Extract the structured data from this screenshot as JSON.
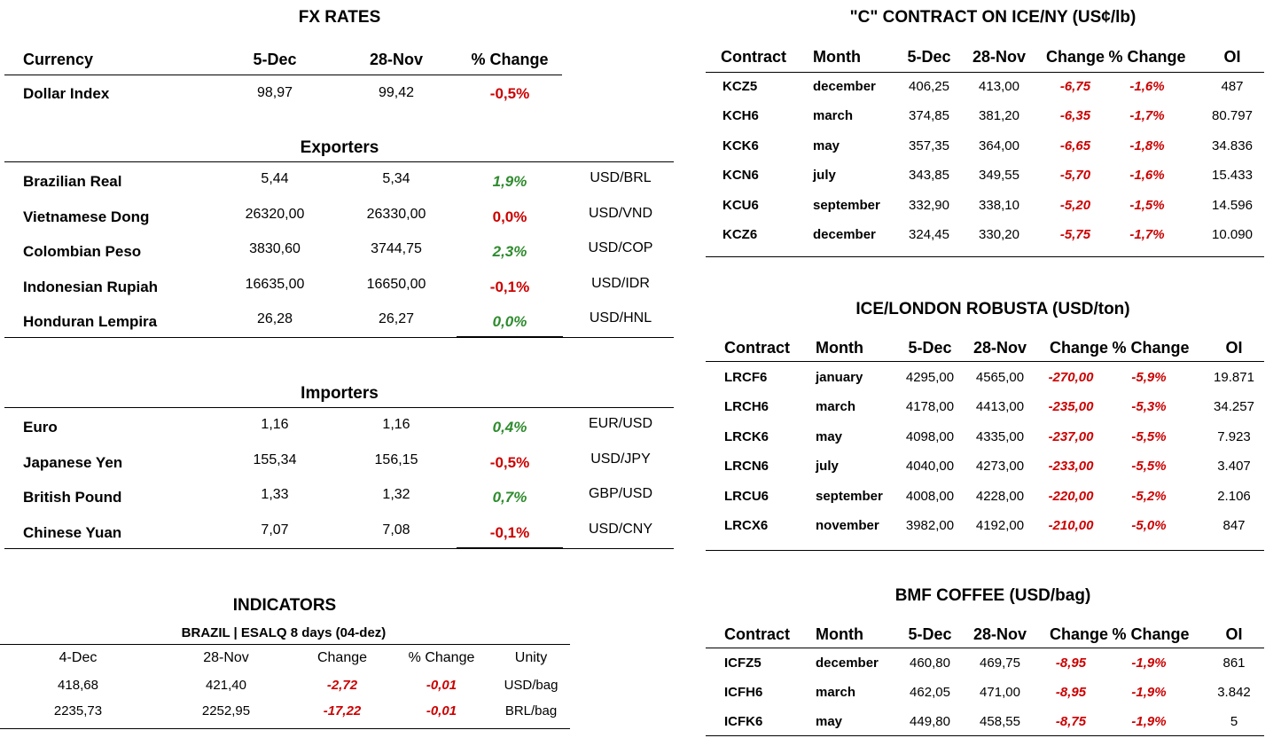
{
  "fx": {
    "title": "FX RATES",
    "headers": [
      "Currency",
      "5-Dec",
      "28-Nov",
      "% Change"
    ],
    "dollar_index": {
      "name": "Dollar Index",
      "d1": "98,97",
      "d2": "99,42",
      "chg": "-0,5%",
      "color": "red"
    },
    "exporters_title": "Exporters",
    "exporters": [
      {
        "name": "Brazilian Real",
        "d1": "5,44",
        "d2": "5,34",
        "chg": "1,9%",
        "color": "green",
        "pair": "USD/BRL"
      },
      {
        "name": "Vietnamese Dong",
        "d1": "26320,00",
        "d2": "26330,00",
        "chg": "0,0%",
        "color": "red",
        "pair": "USD/VND"
      },
      {
        "name": "Colombian Peso",
        "d1": "3830,60",
        "d2": "3744,75",
        "chg": "2,3%",
        "color": "green",
        "pair": "USD/COP"
      },
      {
        "name": "Indonesian Rupiah",
        "d1": "16635,00",
        "d2": "16650,00",
        "chg": "-0,1%",
        "color": "red",
        "pair": "USD/IDR"
      },
      {
        "name": "Honduran Lempira",
        "d1": "26,28",
        "d2": "26,27",
        "chg": "0,0%",
        "color": "green",
        "pair": "USD/HNL"
      }
    ],
    "importers_title": "Importers",
    "importers": [
      {
        "name": "Euro",
        "d1": "1,16",
        "d2": "1,16",
        "chg": "0,4%",
        "color": "green",
        "pair": "EUR/USD"
      },
      {
        "name": "Japanese Yen",
        "d1": "155,34",
        "d2": "156,15",
        "chg": "-0,5%",
        "color": "red",
        "pair": "USD/JPY"
      },
      {
        "name": "British Pound",
        "d1": "1,33",
        "d2": "1,32",
        "chg": "0,7%",
        "color": "green",
        "pair": "GBP/USD"
      },
      {
        "name": "Chinese Yuan",
        "d1": "7,07",
        "d2": "7,08",
        "chg": "-0,1%",
        "color": "red",
        "pair": "USD/CNY"
      }
    ]
  },
  "indicators": {
    "title": "INDICATORS",
    "subtitle": "BRAZIL | ESALQ 8 days (04-dez)",
    "headers": [
      "4-Dec",
      "28-Nov",
      "Change",
      "% Change",
      "Unity"
    ],
    "rows": [
      {
        "d1": "418,68",
        "d2": "421,40",
        "chg": "-2,72",
        "pct": "-0,01",
        "unit": "USD/bag"
      },
      {
        "d1": "2235,73",
        "d2": "2252,95",
        "chg": "-17,22",
        "pct": "-0,01",
        "unit": "BRL/bag"
      }
    ]
  },
  "futures_headers": [
    "Contract",
    "Month",
    "5-Dec",
    "28-Nov",
    "Change",
    "% Change",
    "OI"
  ],
  "ice_ny": {
    "title": "\"C\" CONTRACT ON ICE/NY (US¢/lb)",
    "rows": [
      {
        "c": "KCZ5",
        "m": "december",
        "d1": "406,25",
        "d2": "413,00",
        "chg": "-6,75",
        "pct": "-1,6%",
        "oi": "487"
      },
      {
        "c": "KCH6",
        "m": "march",
        "d1": "374,85",
        "d2": "381,20",
        "chg": "-6,35",
        "pct": "-1,7%",
        "oi": "80.797"
      },
      {
        "c": "KCK6",
        "m": "may",
        "d1": "357,35",
        "d2": "364,00",
        "chg": "-6,65",
        "pct": "-1,8%",
        "oi": "34.836"
      },
      {
        "c": "KCN6",
        "m": "july",
        "d1": "343,85",
        "d2": "349,55",
        "chg": "-5,70",
        "pct": "-1,6%",
        "oi": "15.433"
      },
      {
        "c": "KCU6",
        "m": "september",
        "d1": "332,90",
        "d2": "338,10",
        "chg": "-5,20",
        "pct": "-1,5%",
        "oi": "14.596"
      },
      {
        "c": "KCZ6",
        "m": "december",
        "d1": "324,45",
        "d2": "330,20",
        "chg": "-5,75",
        "pct": "-1,7%",
        "oi": "10.090"
      }
    ]
  },
  "london": {
    "title": "ICE/LONDON ROBUSTA (USD/ton)",
    "rows": [
      {
        "c": "LRCF6",
        "m": "january",
        "d1": "4295,00",
        "d2": "4565,00",
        "chg": "-270,00",
        "pct": "-5,9%",
        "oi": "19.871"
      },
      {
        "c": "LRCH6",
        "m": "march",
        "d1": "4178,00",
        "d2": "4413,00",
        "chg": "-235,00",
        "pct": "-5,3%",
        "oi": "34.257"
      },
      {
        "c": "LRCK6",
        "m": "may",
        "d1": "4098,00",
        "d2": "4335,00",
        "chg": "-237,00",
        "pct": "-5,5%",
        "oi": "7.923"
      },
      {
        "c": "LRCN6",
        "m": "july",
        "d1": "4040,00",
        "d2": "4273,00",
        "chg": "-233,00",
        "pct": "-5,5%",
        "oi": "3.407"
      },
      {
        "c": "LRCU6",
        "m": "september",
        "d1": "4008,00",
        "d2": "4228,00",
        "chg": "-220,00",
        "pct": "-5,2%",
        "oi": "2.106"
      },
      {
        "c": "LRCX6",
        "m": "november",
        "d1": "3982,00",
        "d2": "4192,00",
        "chg": "-210,00",
        "pct": "-5,0%",
        "oi": "847"
      }
    ]
  },
  "bmf": {
    "title": "BMF COFFEE (USD/bag)",
    "rows": [
      {
        "c": "ICFZ5",
        "m": "december",
        "d1": "460,80",
        "d2": "469,75",
        "chg": "-8,95",
        "pct": "-1,9%",
        "oi": "861"
      },
      {
        "c": "ICFH6",
        "m": "march",
        "d1": "462,05",
        "d2": "471,00",
        "chg": "-8,95",
        "pct": "-1,9%",
        "oi": "3.842"
      },
      {
        "c": "ICFK6",
        "m": "may",
        "d1": "449,80",
        "d2": "458,55",
        "chg": "-8,75",
        "pct": "-1,9%",
        "oi": "5"
      }
    ]
  },
  "colors": {
    "red": "#cc0000",
    "green": "#2e8b2e"
  }
}
